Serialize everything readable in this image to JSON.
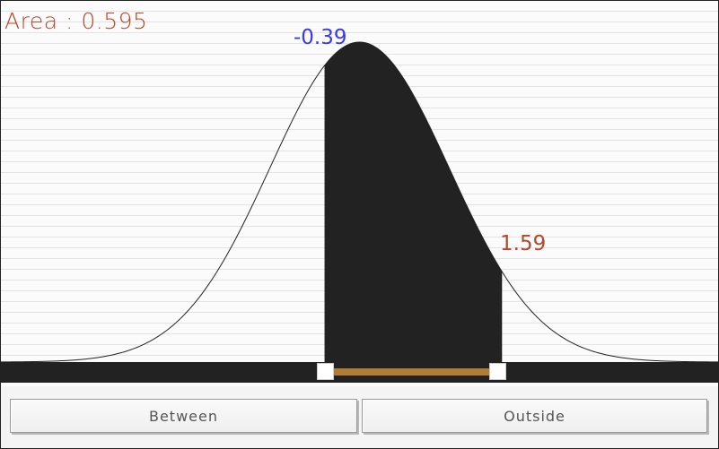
{
  "labels": {
    "area": "Area : 0.595",
    "z_low": "-0.39",
    "z_high": "1.59"
  },
  "selection": {
    "z_low": -0.39,
    "z_high": 1.59,
    "area": 0.595,
    "mode": "between"
  },
  "buttons": {
    "between": "Between",
    "outside": "Outside"
  },
  "colors": {
    "area_label": "#b5472a",
    "z_low_label": "#3a3ae6",
    "z_high_label": "#b5472a",
    "shaded_region": "#222222",
    "slider_range": "#b07d34"
  },
  "chart_data": {
    "type": "area",
    "distribution": "standard normal",
    "xlim": [
      -4,
      4
    ],
    "shaded_from": -0.39,
    "shaded_to": 1.59,
    "grid": "horizontal lines"
  }
}
